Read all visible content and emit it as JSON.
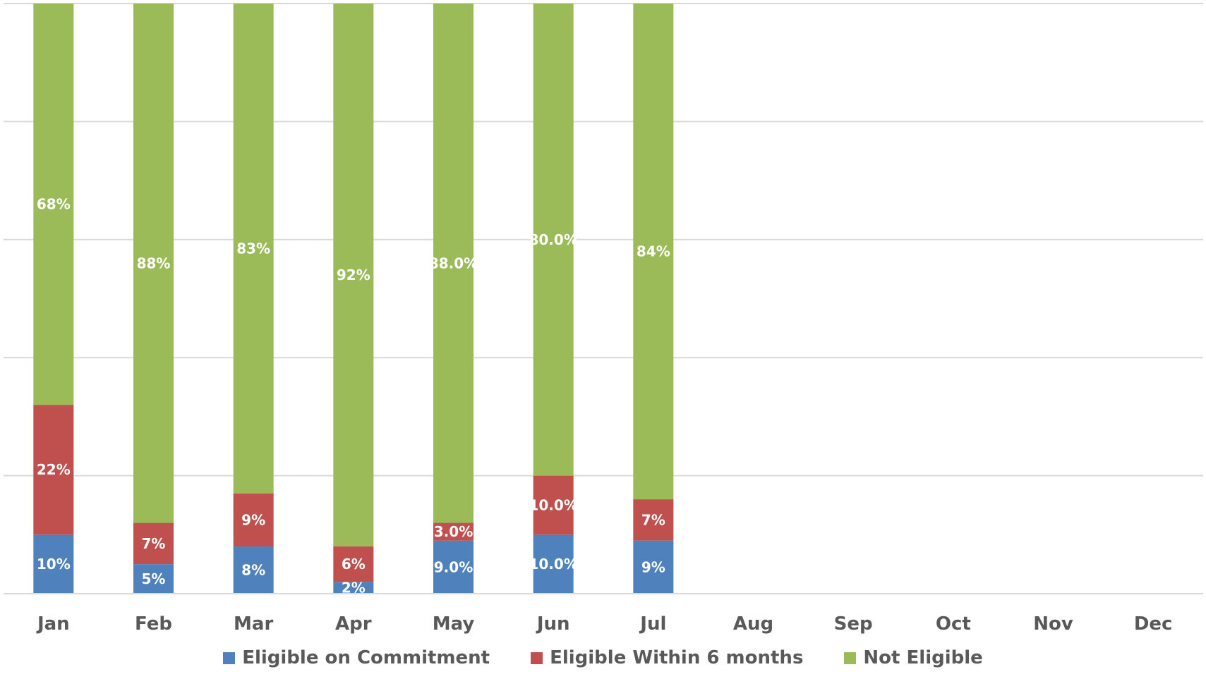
{
  "chart_data": {
    "type": "bar",
    "stacked": true,
    "percent_scale": true,
    "categories": [
      "Jan",
      "Feb",
      "Mar",
      "Apr",
      "May",
      "Jun",
      "Jul",
      "Aug",
      "Sep",
      "Oct",
      "Nov",
      "Dec"
    ],
    "series": [
      {
        "name": "Eligible on Commitment",
        "color": "#4f81bd",
        "values": [
          10,
          5,
          8,
          2,
          9,
          10,
          9,
          null,
          null,
          null,
          null,
          null
        ],
        "labels": [
          "10%",
          "5%",
          "8%",
          "2%",
          "9.0%",
          "10.0%",
          "9%",
          "",
          "",
          "",
          "",
          ""
        ]
      },
      {
        "name": "Eligible Within 6 months",
        "color": "#c0504d",
        "values": [
          22,
          7,
          9,
          6,
          3,
          10,
          7,
          null,
          null,
          null,
          null,
          null
        ],
        "labels": [
          "22%",
          "7%",
          "9%",
          "6%",
          "3.0%",
          "10.0%",
          "7%",
          "",
          "",
          "",
          "",
          ""
        ]
      },
      {
        "name": "Not Eligible",
        "color": "#9bbb59",
        "values": [
          68,
          88,
          83,
          92,
          88,
          80,
          84,
          null,
          null,
          null,
          null,
          null
        ],
        "labels": [
          "68%",
          "88%",
          "83%",
          "92%",
          "88.0%",
          "80.0%",
          "84%",
          "",
          "",
          "",
          "",
          ""
        ]
      }
    ],
    "ylim": [
      0,
      100
    ],
    "grid": true,
    "legend_position": "bottom",
    "title": "",
    "xlabel": "",
    "ylabel": ""
  }
}
